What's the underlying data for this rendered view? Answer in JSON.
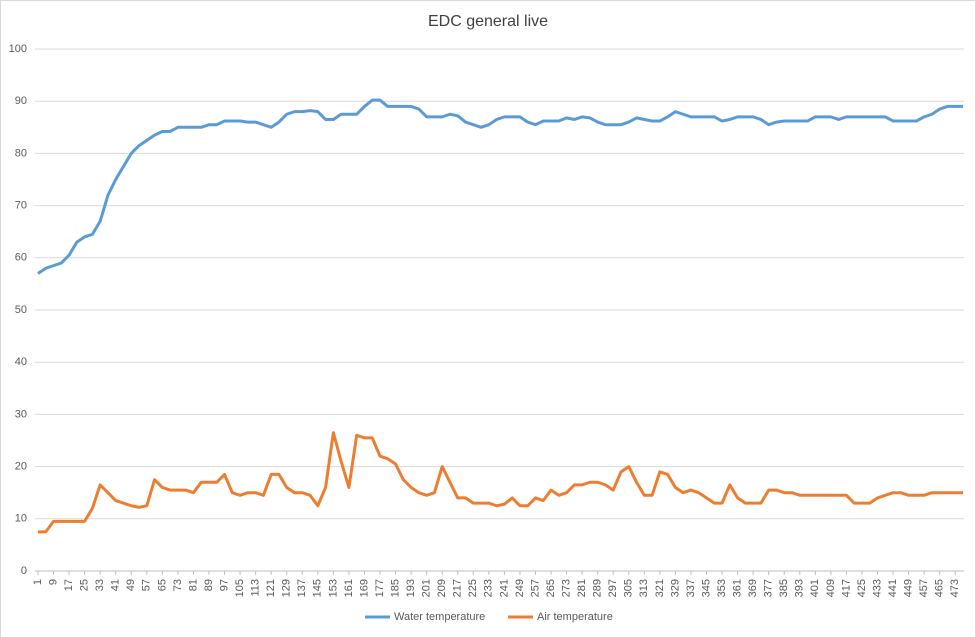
{
  "chart_data": {
    "type": "line",
    "title": "EDC general live",
    "x": [
      1,
      5,
      9,
      13,
      17,
      21,
      25,
      29,
      33,
      37,
      41,
      45,
      49,
      53,
      57,
      61,
      65,
      69,
      73,
      77,
      81,
      85,
      89,
      93,
      97,
      101,
      105,
      109,
      113,
      117,
      121,
      125,
      129,
      133,
      137,
      141,
      145,
      149,
      153,
      157,
      161,
      165,
      169,
      173,
      177,
      181,
      185,
      189,
      193,
      197,
      201,
      205,
      209,
      213,
      217,
      221,
      225,
      229,
      233,
      237,
      241,
      245,
      249,
      253,
      257,
      261,
      265,
      269,
      273,
      277,
      281,
      285,
      289,
      293,
      297,
      301,
      305,
      309,
      313,
      317,
      321,
      325,
      329,
      333,
      337,
      341,
      345,
      349,
      353,
      357,
      361,
      365,
      369,
      373,
      377,
      381,
      385,
      389,
      393,
      397,
      401,
      405,
      409,
      413,
      417,
      421,
      425,
      429,
      433,
      437,
      441,
      445,
      449,
      453,
      457,
      461,
      465,
      469,
      473,
      477
    ],
    "series": [
      {
        "name": "Water temperature",
        "color": "#5b9bd5",
        "values": [
          57,
          58,
          58.5,
          59,
          60.5,
          63,
          64,
          64.5,
          67,
          72,
          75,
          77.5,
          80,
          81.5,
          82.5,
          83.5,
          84.2,
          84.2,
          85,
          85,
          85,
          85,
          85.5,
          85.5,
          86.2,
          86.2,
          86.2,
          86,
          86,
          85.5,
          85,
          86,
          87.5,
          88,
          88,
          88.2,
          88,
          86.5,
          86.5,
          87.5,
          87.5,
          87.5,
          89,
          90.2,
          90.2,
          89,
          89,
          89,
          89,
          88.5,
          87,
          87,
          87,
          87.5,
          87.2,
          86,
          85.5,
          85,
          85.5,
          86.5,
          87,
          87,
          87,
          86,
          85.5,
          86.2,
          86.2,
          86.2,
          86.8,
          86.5,
          87,
          86.8,
          86,
          85.5,
          85.5,
          85.5,
          86,
          86.8,
          86.5,
          86.2,
          86.2,
          87,
          88,
          87.5,
          87,
          87,
          87,
          87,
          86.2,
          86.5,
          87,
          87,
          87,
          86.5,
          85.5,
          86,
          86.2,
          86.2,
          86.2,
          86.2,
          87,
          87,
          87,
          86.5,
          87,
          87,
          87,
          87,
          87,
          87,
          86.2,
          86.2,
          86.2,
          86.2,
          87,
          87.5,
          88.5,
          89,
          89,
          89
        ]
      },
      {
        "name": "Air temperature",
        "color": "#ed7d31",
        "values": [
          7.5,
          7.5,
          9.5,
          9.5,
          9.5,
          9.5,
          9.5,
          12,
          16.5,
          15,
          13.5,
          13,
          12.5,
          12.2,
          12.5,
          17.5,
          16,
          15.5,
          15.5,
          15.5,
          15,
          17,
          17,
          17,
          18.5,
          15,
          14.5,
          15,
          15,
          14.5,
          18.5,
          18.5,
          16,
          15,
          15,
          14.5,
          12.5,
          16,
          26.5,
          21,
          16,
          26,
          25.5,
          25.5,
          22,
          21.5,
          20.5,
          17.5,
          16,
          15,
          14.5,
          15,
          20,
          17,
          14,
          14,
          13,
          13,
          13,
          12.5,
          12.8,
          14,
          12.5,
          12.5,
          14,
          13.5,
          15.5,
          14.5,
          15,
          16.5,
          16.5,
          17,
          17,
          16.5,
          15.5,
          19,
          20,
          17,
          14.5,
          14.5,
          19,
          18.5,
          16,
          15,
          15.5,
          15,
          14,
          13,
          13,
          16.5,
          14,
          13,
          13,
          13,
          15.5,
          15.5,
          15,
          15,
          14.5,
          14.5,
          14.5,
          14.5,
          14.5,
          14.5,
          14.5,
          13,
          13,
          13,
          14,
          14.5,
          15,
          15,
          14.5,
          14.5,
          14.5,
          15,
          15,
          15,
          15,
          15
        ]
      }
    ],
    "xlim": [
      0.5,
      477.5
    ],
    "xticks": [
      1,
      9,
      17,
      25,
      33,
      41,
      49,
      57,
      65,
      73,
      81,
      89,
      97,
      105,
      113,
      121,
      129,
      137,
      145,
      153,
      161,
      169,
      177,
      185,
      193,
      201,
      209,
      217,
      225,
      233,
      241,
      249,
      257,
      265,
      273,
      281,
      289,
      297,
      305,
      313,
      321,
      329,
      337,
      345,
      353,
      361,
      369,
      377,
      385,
      393,
      401,
      409,
      417,
      425,
      433,
      441,
      449,
      457,
      465,
      473
    ],
    "ylim": [
      0,
      100
    ],
    "yticks": [
      0,
      10,
      20,
      30,
      40,
      50,
      60,
      70,
      80,
      90,
      100
    ],
    "grid": true,
    "legend": "bottom"
  }
}
